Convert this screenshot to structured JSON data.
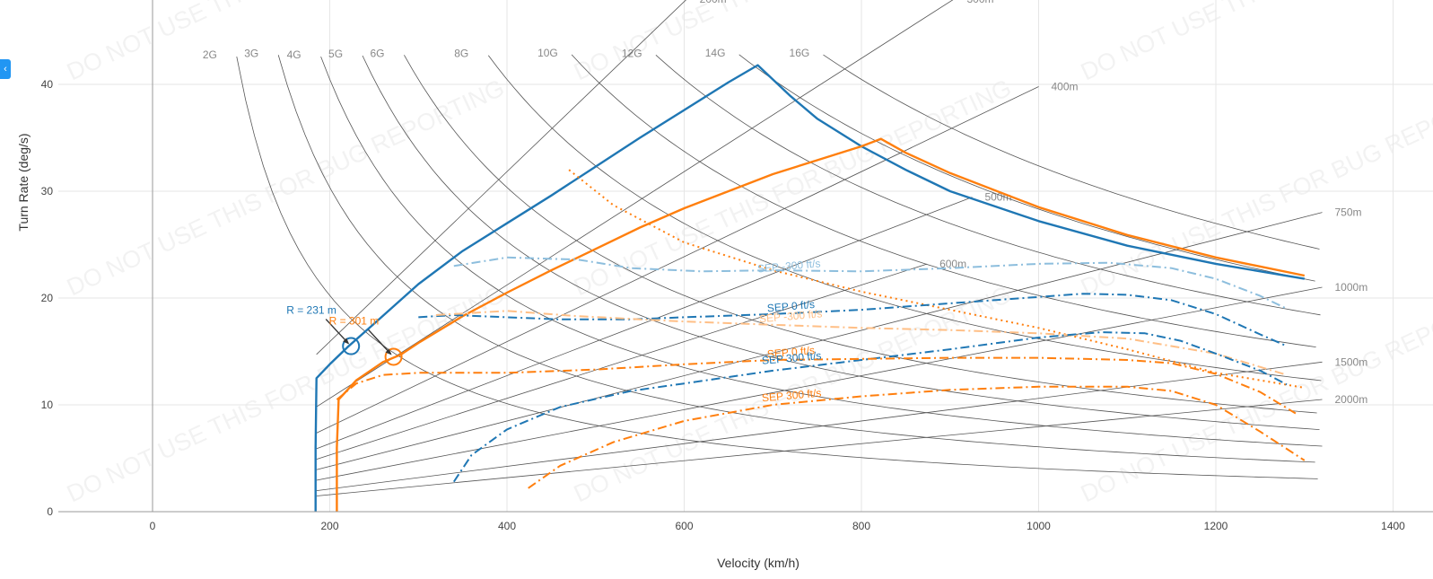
{
  "side_toggle": {
    "icon": "chevron-left-icon",
    "glyph": "‹"
  },
  "watermark": "DO NOT USE THIS FOR BUG REPORTING",
  "chart_data": {
    "type": "line",
    "xlabel": "Velocity (km/h)",
    "ylabel": "Turn Rate (deg/s)",
    "xlim": [
      -110,
      1400
    ],
    "ylim": [
      0,
      48
    ],
    "x_ticks": [
      0,
      200,
      400,
      600,
      800,
      1000,
      1200,
      1400
    ],
    "y_ticks": [
      0,
      10,
      20,
      30,
      40
    ],
    "grid": true,
    "colors": {
      "blue": "#1f77b4",
      "orange": "#ff7f0e",
      "light_blue": "#8dbedd",
      "light_orange": "#ffbf86",
      "grid": "#e6e6e6",
      "guide": "#555555"
    },
    "radius_lines": [
      {
        "label": "200m",
        "radius_m": 200
      },
      {
        "label": "300m",
        "radius_m": 300
      },
      {
        "label": "400m",
        "radius_m": 400
      },
      {
        "label": "500m",
        "radius_m": 500
      },
      {
        "label": "600m",
        "radius_m": 600
      },
      {
        "label": "750m",
        "radius_m": 750
      },
      {
        "label": "1000m",
        "radius_m": 1000
      },
      {
        "label": "1500m",
        "radius_m": 1500
      },
      {
        "label": "2000m",
        "radius_m": 2000
      }
    ],
    "g_lines": [
      {
        "label": "2G",
        "g": 2
      },
      {
        "label": "3G",
        "g": 3
      },
      {
        "label": "4G",
        "g": 4
      },
      {
        "label": "5G",
        "g": 5
      },
      {
        "label": "6G",
        "g": 6
      },
      {
        "label": "8G",
        "g": 8
      },
      {
        "label": "10G",
        "g": 10
      },
      {
        "label": "12G",
        "g": 12
      },
      {
        "label": "14G",
        "g": 14
      },
      {
        "label": "16G",
        "g": 16
      }
    ],
    "series": [
      {
        "color": "blue",
        "dash": "solid",
        "width": 2.4,
        "x": [
          184,
          184,
          185,
          200,
          220,
          250,
          300,
          350,
          400,
          450,
          500,
          550,
          600,
          650,
          683,
          720,
          750,
          800,
          850,
          900,
          1000,
          1100,
          1200,
          1300
        ],
        "y": [
          0,
          6,
          12.5,
          13.8,
          15.4,
          17.6,
          21.3,
          24.4,
          27.0,
          29.6,
          32.3,
          35.0,
          37.6,
          40.2,
          41.8,
          38.9,
          36.8,
          34.2,
          32.0,
          30.0,
          27.2,
          24.9,
          23.2,
          21.8
        ]
      },
      {
        "color": "orange",
        "dash": "solid",
        "width": 2.4,
        "x": [
          208,
          208,
          210,
          230,
          260,
          280,
          300,
          350,
          400,
          450,
          500,
          550,
          600,
          650,
          700,
          750,
          800,
          822,
          850,
          900,
          1000,
          1100,
          1200,
          1300
        ],
        "y": [
          0,
          6,
          10.5,
          12.3,
          14.0,
          14.7,
          15.8,
          18.3,
          20.5,
          22.6,
          24.6,
          26.6,
          28.4,
          30.0,
          31.6,
          32.9,
          34.2,
          34.9,
          33.6,
          31.7,
          28.5,
          25.9,
          23.8,
          22.1
        ]
      },
      {
        "color": "orange",
        "dash": "dot",
        "width": 2,
        "x": [
          470,
          520,
          600,
          700,
          800,
          900,
          1000,
          1100,
          1200,
          1300
        ],
        "y": [
          32,
          28.7,
          25.2,
          22.6,
          20.6,
          18.9,
          17.2,
          15.2,
          13.0,
          11.6
        ]
      },
      {
        "color": "light_blue",
        "dash": "dashdot",
        "width": 2,
        "name": "SEP -300 ft/s",
        "x": [
          340,
          400,
          480,
          540,
          620,
          700,
          800,
          900,
          1000,
          1080,
          1150,
          1200,
          1250,
          1280
        ],
        "y": [
          23,
          23.8,
          23.6,
          22.8,
          22.5,
          22.6,
          22.5,
          22.8,
          23.2,
          23.3,
          22.8,
          21.8,
          20.2,
          19.0
        ]
      },
      {
        "color": "blue",
        "dash": "dashdot",
        "width": 2,
        "name": "SEP 0 ft/s",
        "x": [
          300,
          340,
          400,
          460,
          540,
          600,
          700,
          800,
          900,
          1000,
          1050,
          1100,
          1150,
          1200,
          1250,
          1280
        ],
        "y": [
          18.2,
          18.4,
          18.2,
          18.0,
          18.0,
          18.2,
          18.5,
          18.9,
          19.5,
          20.1,
          20.4,
          20.3,
          19.8,
          18.5,
          16.6,
          15.5
        ]
      },
      {
        "color": "light_orange",
        "dash": "dashdot",
        "width": 2,
        "name": "SEP -300 ft/s",
        "x": [
          320,
          400,
          480,
          600,
          700,
          800,
          900,
          1000,
          1100,
          1200,
          1280
        ],
        "y": [
          18.4,
          18.8,
          18.3,
          17.8,
          17.5,
          17.2,
          17.0,
          16.7,
          16.2,
          14.8,
          12.8
        ]
      },
      {
        "color": "blue",
        "dash": "dashdot",
        "width": 2,
        "name": "SEP 300 ft/s",
        "x": [
          340,
          360,
          400,
          460,
          540,
          600,
          700,
          800,
          900,
          1000,
          1070,
          1120,
          1160,
          1200,
          1250,
          1280
        ],
        "y": [
          2.8,
          5.3,
          7.7,
          9.8,
          11.3,
          12.0,
          13.2,
          14.2,
          15.2,
          16.3,
          16.8,
          16.7,
          16.0,
          14.8,
          13.2,
          11.9
        ]
      },
      {
        "color": "orange",
        "dash": "dashdot",
        "width": 2,
        "name": "SEP 0 ft/s",
        "x": [
          208,
          230,
          260,
          300,
          350,
          400,
          500,
          600,
          700,
          800,
          900,
          1000,
          1100,
          1150,
          1200,
          1250,
          1290
        ],
        "y": [
          10.5,
          12.0,
          12.8,
          13.0,
          13.0,
          13.0,
          13.3,
          13.8,
          14.2,
          14.3,
          14.4,
          14.4,
          14.2,
          13.9,
          12.9,
          11.2,
          9.2
        ]
      },
      {
        "color": "orange",
        "dash": "dashdot",
        "width": 2,
        "name": "SEP 300 ft/s",
        "x": [
          424,
          460,
          520,
          600,
          700,
          800,
          900,
          1000,
          1100,
          1150,
          1200,
          1250,
          1300
        ],
        "y": [
          2.2,
          4.3,
          6.5,
          8.5,
          10.0,
          10.8,
          11.4,
          11.7,
          11.7,
          11.3,
          10.0,
          7.5,
          4.8
        ]
      }
    ],
    "markers": [
      {
        "color": "blue",
        "x": 224,
        "y": 15.5,
        "label": "R = 231 m"
      },
      {
        "color": "orange",
        "x": 272,
        "y": 14.5,
        "label": "R = 301 m"
      }
    ],
    "sep_labels": [
      {
        "text": "SEP -300 ft/s",
        "color": "light_blue",
        "x": 683,
        "y": 22.4
      },
      {
        "text": "SEP 0 ft/s",
        "color": "blue",
        "x": 694,
        "y": 18.7
      },
      {
        "text": "SEP -300 ft/s",
        "color": "light_orange",
        "x": 685,
        "y": 17.7
      },
      {
        "text": "SEP 0 ft/s",
        "color": "orange",
        "x": 694,
        "y": 14.4
      },
      {
        "text": "SEP 300 ft/s",
        "color": "blue",
        "x": 688,
        "y": 13.8
      },
      {
        "text": "SEP 300 ft/s",
        "color": "orange",
        "x": 688,
        "y": 10.3
      }
    ]
  }
}
